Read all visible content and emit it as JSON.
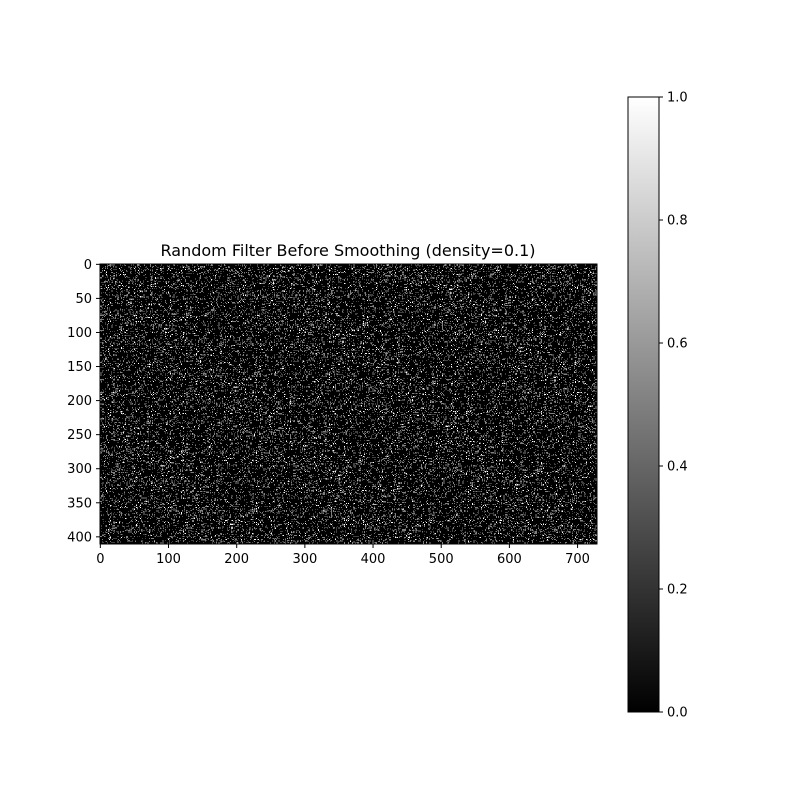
{
  "chart_data": {
    "type": "heatmap",
    "title": "Random Filter Before Smoothing (density=0.1)",
    "xlabel": "",
    "ylabel": "",
    "image_width": 729,
    "image_height": 411,
    "density": 0.1,
    "colormap": "gray",
    "value_range": [
      0,
      1
    ],
    "xlim": [
      -0.5,
      728.5
    ],
    "ylim": [
      410.5,
      -0.5
    ],
    "x_ticks": [
      0,
      100,
      200,
      300,
      400,
      500,
      600,
      700
    ],
    "x_tick_labels": [
      "0",
      "100",
      "200",
      "300",
      "400",
      "500",
      "600",
      "700"
    ],
    "y_ticks": [
      0,
      50,
      100,
      150,
      200,
      250,
      300,
      350,
      400
    ],
    "y_tick_labels": [
      "0",
      "50",
      "100",
      "150",
      "200",
      "250",
      "300",
      "350",
      "400"
    ],
    "colorbar": {
      "ticks": [
        0.0,
        0.2,
        0.4,
        0.6,
        0.8,
        1.0
      ],
      "tick_labels": [
        "0.0",
        "0.2",
        "0.4",
        "0.6",
        "0.8",
        "1.0"
      ],
      "low_color": "#000000",
      "high_color": "#ffffff"
    }
  }
}
